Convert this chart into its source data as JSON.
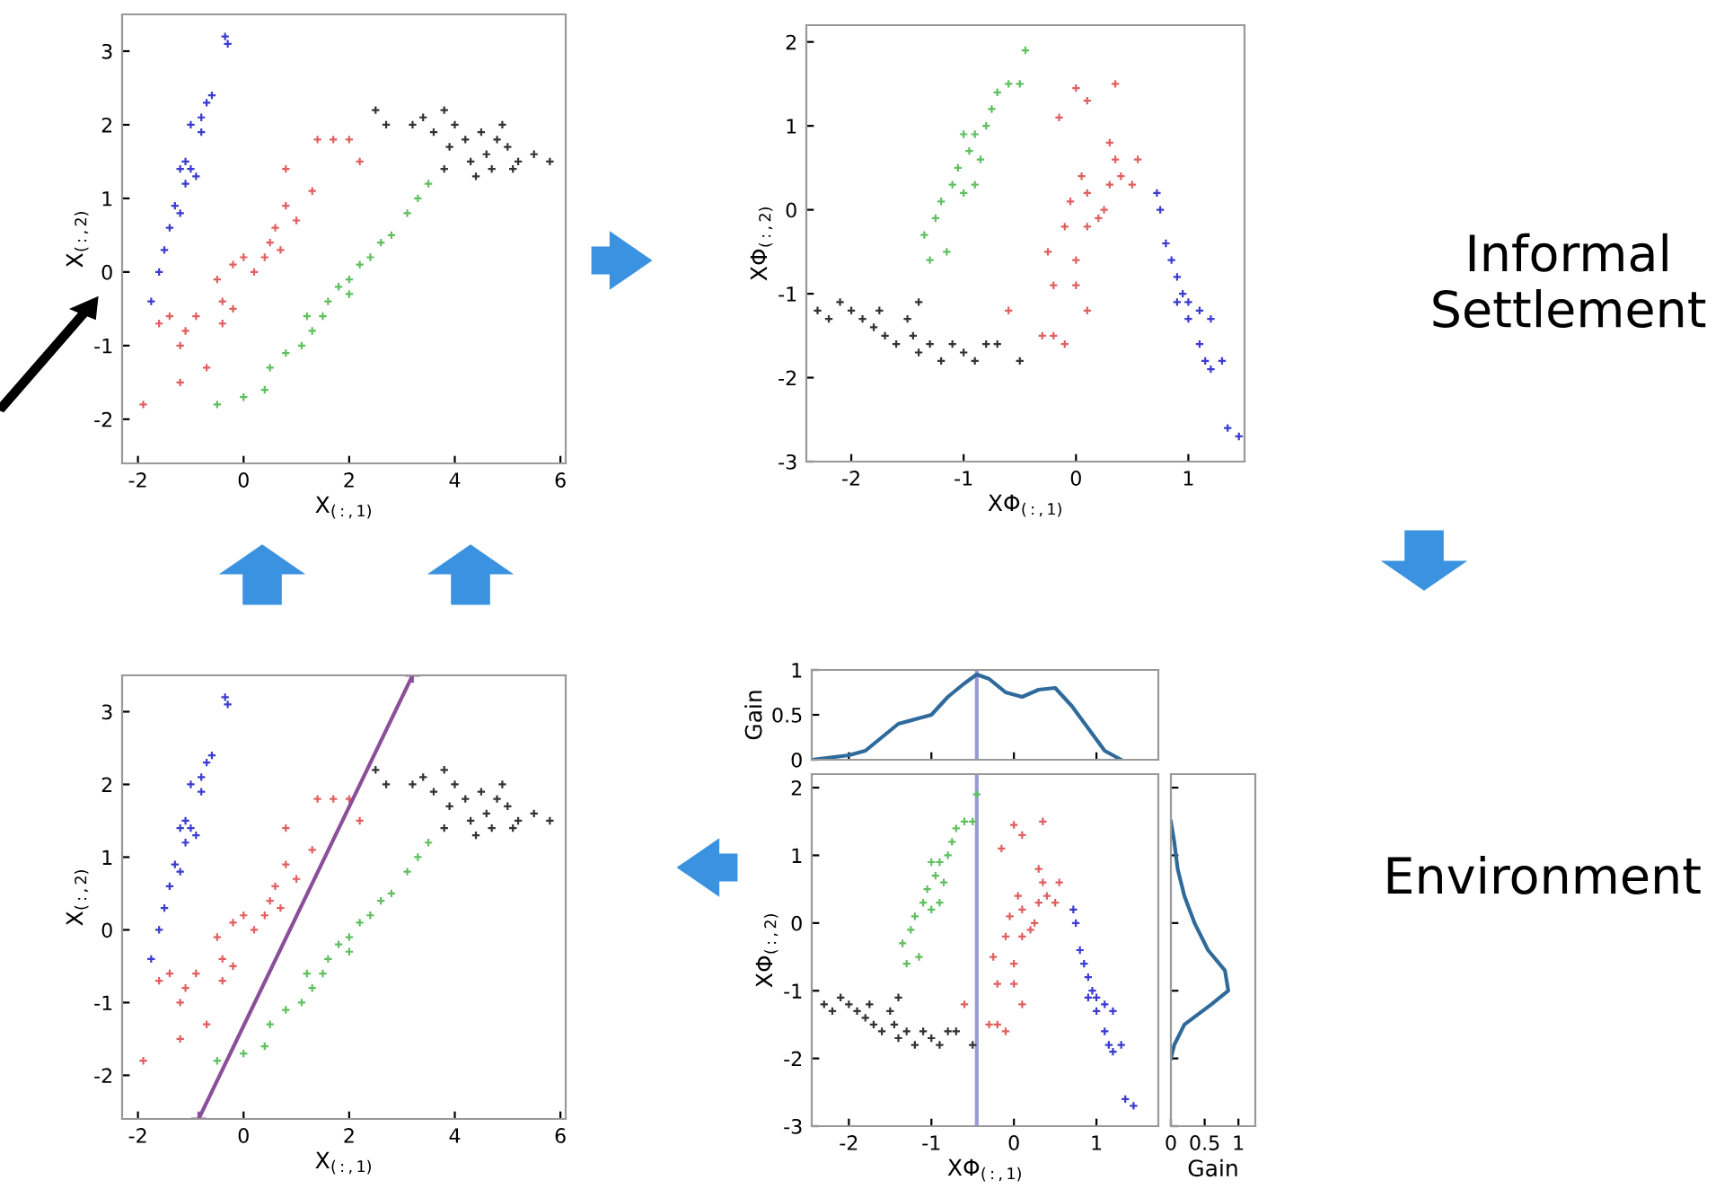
{
  "chart_data": [
    {
      "type": "scatter",
      "xlabel": "X$_{(:,1)}$",
      "ylabel": "X$_{(:,2)}$",
      "xlim": [
        -2.3,
        6.1
      ],
      "ylim": [
        -2.6,
        3.5
      ],
      "xticks": [
        -2,
        0,
        2,
        4,
        6
      ],
      "yticks": [
        -2,
        -1,
        0,
        1,
        2,
        3
      ],
      "marker": "cross",
      "series": [
        {
          "color": "#3b3bd0",
          "x": [
            -1.75,
            -1.6,
            -1.5,
            -1.4,
            -1.3,
            -1.2,
            -1.1,
            -1.0,
            -1.1,
            -0.9,
            -1.0,
            -0.8,
            -0.8,
            -0.7,
            -0.6,
            -1.2,
            -0.35,
            -0.3
          ],
          "values": [
            -0.4,
            0,
            0.3,
            0.6,
            0.9,
            0.8,
            1.2,
            1.4,
            1.5,
            1.3,
            2.0,
            1.9,
            2.1,
            2.3,
            2.4,
            1.4,
            3.2,
            3.1
          ]
        },
        {
          "color": "#e06060",
          "x": [
            -1.9,
            -1.6,
            -1.4,
            -1.2,
            -1.1,
            -0.9,
            -0.7,
            -1.2,
            -0.5,
            -0.4,
            -0.2,
            0,
            0.2,
            0.4,
            0.5,
            0.6,
            0.8,
            0.7,
            1.0,
            0.8,
            1.3,
            1.4,
            1.7,
            2.0,
            2.2,
            -0.4,
            -0.2
          ],
          "values": [
            -1.8,
            -0.7,
            -0.6,
            -1.0,
            -0.8,
            -0.6,
            -1.3,
            -1.5,
            -0.1,
            -0.4,
            0.1,
            0.2,
            0.0,
            0.2,
            0.4,
            0.6,
            0.9,
            0.3,
            0.7,
            1.4,
            1.1,
            1.8,
            1.8,
            1.8,
            1.5,
            -0.7,
            -0.5
          ]
        },
        {
          "color": "#60c060",
          "x": [
            -0.5,
            0,
            0.4,
            0.5,
            0.8,
            1.1,
            1.3,
            1.5,
            1.6,
            1.8,
            2.0,
            2.2,
            2.4,
            2.6,
            2.8,
            3.1,
            3.3,
            3.5,
            1.2,
            2.0
          ],
          "values": [
            -1.8,
            -1.7,
            -1.6,
            -1.3,
            -1.1,
            -1.0,
            -0.8,
            -0.6,
            -0.4,
            -0.2,
            -0.1,
            0.1,
            0.2,
            0.4,
            0.5,
            0.8,
            1.0,
            1.2,
            -0.6,
            -0.3
          ]
        },
        {
          "color": "#333333",
          "x": [
            2.5,
            2.7,
            3.2,
            3.4,
            3.6,
            3.8,
            3.9,
            4.0,
            4.2,
            4.3,
            4.5,
            4.6,
            4.8,
            4.7,
            5.0,
            5.1,
            5.2,
            5.5,
            5.8,
            3.8,
            4.4,
            4.9
          ],
          "values": [
            2.2,
            2.0,
            2.0,
            2.1,
            1.9,
            2.2,
            1.7,
            2.0,
            1.8,
            1.5,
            1.9,
            1.6,
            1.8,
            1.4,
            1.7,
            1.4,
            1.5,
            1.6,
            1.5,
            1.4,
            1.3,
            2.0
          ]
        }
      ]
    },
    {
      "type": "scatter",
      "xlabel": "XΦ$_{(:,1)}$",
      "ylabel": "XΦ$_{(:,2)}$",
      "xlim": [
        -2.4,
        1.5
      ],
      "ylim": [
        -3,
        2.2
      ],
      "xticks": [
        -2,
        -1,
        0,
        1
      ],
      "yticks": [
        -3,
        -2,
        -1,
        0,
        1,
        2
      ],
      "marker": "cross",
      "annotations": [
        "Informal\nSettlement"
      ],
      "series": [
        {
          "color": "#333333",
          "x": [
            -2.3,
            -2.2,
            -2.1,
            -2.0,
            -1.9,
            -1.8,
            -1.75,
            -1.7,
            -1.6,
            -1.5,
            -1.45,
            -1.4,
            -1.3,
            -1.2,
            -1.1,
            -1.0,
            -0.9,
            -0.8,
            -0.7,
            -1.4,
            -0.5
          ],
          "values": [
            -1.2,
            -1.3,
            -1.1,
            -1.2,
            -1.3,
            -1.4,
            -1.2,
            -1.5,
            -1.6,
            -1.3,
            -1.5,
            -1.7,
            -1.6,
            -1.8,
            -1.6,
            -1.7,
            -1.8,
            -1.6,
            -1.6,
            -1.1,
            -1.8
          ]
        },
        {
          "color": "#60c060",
          "x": [
            -1.3,
            -1.35,
            -1.25,
            -1.2,
            -1.1,
            -1.05,
            -1.0,
            -0.95,
            -0.9,
            -1.0,
            -0.85,
            -0.8,
            -0.75,
            -0.7,
            -0.6,
            -0.5,
            -0.45,
            -1.15,
            -0.9
          ],
          "values": [
            -0.6,
            -0.3,
            -0.1,
            0.1,
            0.3,
            0.5,
            0.2,
            0.7,
            0.9,
            0.9,
            0.6,
            1.0,
            1.2,
            1.4,
            1.5,
            1.5,
            1.9,
            -0.5,
            0.3
          ]
        },
        {
          "color": "#e06060",
          "x": [
            -0.6,
            -0.3,
            -0.2,
            -0.1,
            -0.25,
            -0.2,
            -0.1,
            0,
            0,
            -0.05,
            0.05,
            0.1,
            0.1,
            0.2,
            0.25,
            0.3,
            0.3,
            0.35,
            0.4,
            0.55,
            0.5,
            0.1,
            0.0,
            -0.15,
            0.35,
            0.1
          ],
          "values": [
            -1.2,
            -1.5,
            -1.5,
            -1.6,
            -0.5,
            -0.9,
            -0.2,
            -0.6,
            -0.9,
            0.1,
            0.4,
            0.2,
            -0.2,
            -0.1,
            0.0,
            0.3,
            0.8,
            0.6,
            0.4,
            0.6,
            0.3,
            1.3,
            1.45,
            1.1,
            1.5,
            -1.2
          ]
        },
        {
          "color": "#3b3bd0",
          "x": [
            0.72,
            0.75,
            0.8,
            0.85,
            0.9,
            0.95,
            1.0,
            1.0,
            1.1,
            1.2,
            1.1,
            1.15,
            1.2,
            1.3,
            1.35,
            1.45,
            0.9
          ],
          "values": [
            0.2,
            0.0,
            -0.4,
            -0.6,
            -0.8,
            -1.0,
            -1.1,
            -1.3,
            -1.2,
            -1.3,
            -1.6,
            -1.8,
            -1.9,
            -1.8,
            -2.6,
            -2.7,
            -1.1
          ]
        }
      ]
    },
    {
      "type": "scatter",
      "xlabel": "X$_{(:,1)}$",
      "ylabel": "X$_{(:,2)}$",
      "xlim": [
        -2.3,
        6.1
      ],
      "ylim": [
        -2.6,
        3.5
      ],
      "xticks": [
        -2,
        0,
        2,
        4,
        6
      ],
      "yticks": [
        -2,
        -1,
        0,
        1,
        2,
        3
      ],
      "marker": "cross",
      "series": [
        {
          "color": "#3b3bd0",
          "x": [
            -1.75,
            -1.6,
            -1.5,
            -1.4,
            -1.3,
            -1.2,
            -1.1,
            -1.0,
            -1.1,
            -0.9,
            -1.0,
            -0.8,
            -0.8,
            -0.7,
            -0.6,
            -1.2,
            -0.35,
            -0.3
          ],
          "values": [
            -0.4,
            0,
            0.3,
            0.6,
            0.9,
            0.8,
            1.2,
            1.4,
            1.5,
            1.3,
            2.0,
            1.9,
            2.1,
            2.3,
            2.4,
            1.4,
            3.2,
            3.1
          ]
        },
        {
          "color": "#e06060",
          "x": [
            -1.9,
            -1.6,
            -1.4,
            -1.2,
            -1.1,
            -0.9,
            -0.7,
            -1.2,
            -0.5,
            -0.4,
            -0.2,
            0,
            0.2,
            0.4,
            0.5,
            0.6,
            0.8,
            0.7,
            1.0,
            0.8,
            1.3,
            1.4,
            1.7,
            2.0,
            2.2,
            -0.4,
            -0.2
          ],
          "values": [
            -1.8,
            -0.7,
            -0.6,
            -1.0,
            -0.8,
            -0.6,
            -1.3,
            -1.5,
            -0.1,
            -0.4,
            0.1,
            0.2,
            0.0,
            0.2,
            0.4,
            0.6,
            0.9,
            0.3,
            0.7,
            1.4,
            1.1,
            1.8,
            1.8,
            1.8,
            1.5,
            -0.7,
            -0.5
          ]
        },
        {
          "color": "#60c060",
          "x": [
            -0.5,
            0,
            0.4,
            0.5,
            0.8,
            1.1,
            1.3,
            1.5,
            1.6,
            1.8,
            2.0,
            2.2,
            2.4,
            2.6,
            2.8,
            3.1,
            3.3,
            3.5,
            1.2,
            2.0
          ],
          "values": [
            -1.8,
            -1.7,
            -1.6,
            -1.3,
            -1.1,
            -1.0,
            -0.8,
            -0.6,
            -0.4,
            -0.2,
            -0.1,
            0.1,
            0.2,
            0.4,
            0.5,
            0.8,
            1.0,
            1.2,
            -0.6,
            -0.3
          ]
        },
        {
          "color": "#333333",
          "x": [
            2.5,
            2.7,
            3.2,
            3.4,
            3.6,
            3.8,
            3.9,
            4.0,
            4.2,
            4.3,
            4.5,
            4.6,
            4.8,
            4.7,
            5.0,
            5.1,
            5.2,
            5.5,
            5.8,
            3.8,
            4.4,
            4.9
          ],
          "values": [
            2.2,
            2.0,
            2.0,
            2.1,
            1.9,
            2.2,
            1.7,
            2.0,
            1.8,
            1.5,
            1.9,
            1.6,
            1.8,
            1.4,
            1.7,
            1.4,
            1.5,
            1.6,
            1.5,
            1.4,
            1.3,
            2.0
          ]
        },
        {
          "type": "line",
          "color": "#8a4f9a",
          "x": [
            -0.85,
            3.2
          ],
          "values": [
            -2.6,
            3.5
          ]
        }
      ]
    },
    {
      "type": "line",
      "ylabel": "Gain",
      "xlim": [
        -2.45,
        1.75
      ],
      "ylim": [
        0,
        1
      ],
      "yticks": [
        0,
        0.5,
        1
      ],
      "tick_labels": "y",
      "ref_lines": [
        {
          "axis": "x",
          "value": -0.45,
          "color": "#9a9ad8"
        }
      ],
      "series": [
        {
          "color": "#2f6a9a",
          "x": [
            -2.45,
            -2.0,
            -1.8,
            -1.6,
            -1.4,
            -1.2,
            -1.0,
            -0.8,
            -0.6,
            -0.45,
            -0.3,
            -0.1,
            0.1,
            0.3,
            0.5,
            0.7,
            0.9,
            1.1,
            1.3
          ],
          "values": [
            0,
            0.05,
            0.1,
            0.25,
            0.4,
            0.45,
            0.5,
            0.7,
            0.85,
            0.95,
            0.9,
            0.75,
            0.7,
            0.78,
            0.8,
            0.6,
            0.35,
            0.1,
            0.0
          ]
        }
      ]
    },
    {
      "type": "scatter",
      "xlabel": "XΦ$_{(:,1)}$",
      "ylabel": "XΦ$_{(:,2)}$",
      "xlim": [
        -2.45,
        1.75
      ],
      "ylim": [
        -3,
        2.2
      ],
      "xticks": [
        -2,
        -1,
        0,
        1
      ],
      "yticks": [
        -3,
        -2,
        -1,
        0,
        1,
        2
      ],
      "marker": "cross",
      "annotations": [
        "Environment"
      ],
      "ref_lines": [
        {
          "axis": "x",
          "value": -0.45,
          "color": "#9a9ad8"
        }
      ],
      "series": [
        {
          "color": "#333333",
          "x": [
            -2.3,
            -2.2,
            -2.1,
            -2.0,
            -1.9,
            -1.8,
            -1.75,
            -1.7,
            -1.6,
            -1.5,
            -1.45,
            -1.4,
            -1.3,
            -1.2,
            -1.1,
            -1.0,
            -0.9,
            -0.8,
            -0.7,
            -1.4,
            -0.5
          ],
          "values": [
            -1.2,
            -1.3,
            -1.1,
            -1.2,
            -1.3,
            -1.4,
            -1.2,
            -1.5,
            -1.6,
            -1.3,
            -1.5,
            -1.7,
            -1.6,
            -1.8,
            -1.6,
            -1.7,
            -1.8,
            -1.6,
            -1.6,
            -1.1,
            -1.8
          ]
        },
        {
          "color": "#60c060",
          "x": [
            -1.3,
            -1.35,
            -1.25,
            -1.2,
            -1.1,
            -1.05,
            -1.0,
            -0.95,
            -0.9,
            -1.0,
            -0.85,
            -0.8,
            -0.75,
            -0.7,
            -0.6,
            -0.5,
            -0.45,
            -1.15,
            -0.9
          ],
          "values": [
            -0.6,
            -0.3,
            -0.1,
            0.1,
            0.3,
            0.5,
            0.2,
            0.7,
            0.9,
            0.9,
            0.6,
            1.0,
            1.2,
            1.4,
            1.5,
            1.5,
            1.9,
            -0.5,
            0.3
          ]
        },
        {
          "color": "#e06060",
          "x": [
            -0.6,
            -0.3,
            -0.2,
            -0.1,
            -0.25,
            -0.2,
            -0.1,
            0,
            0,
            -0.05,
            0.05,
            0.1,
            0.1,
            0.2,
            0.25,
            0.3,
            0.3,
            0.35,
            0.4,
            0.55,
            0.5,
            0.1,
            0.0,
            -0.15,
            0.35,
            0.1
          ],
          "values": [
            -1.2,
            -1.5,
            -1.5,
            -1.6,
            -0.5,
            -0.9,
            -0.2,
            -0.6,
            -0.9,
            0.1,
            0.4,
            0.2,
            -0.2,
            -0.1,
            0.0,
            0.3,
            0.8,
            0.6,
            0.4,
            0.6,
            0.3,
            1.3,
            1.45,
            1.1,
            1.5,
            -1.2
          ]
        },
        {
          "color": "#3b3bd0",
          "x": [
            0.72,
            0.75,
            0.8,
            0.85,
            0.9,
            0.95,
            1.0,
            1.0,
            1.1,
            1.2,
            1.1,
            1.15,
            1.2,
            1.3,
            1.35,
            1.45,
            0.9
          ],
          "values": [
            0.2,
            0.0,
            -0.4,
            -0.6,
            -0.8,
            -1.0,
            -1.1,
            -1.3,
            -1.2,
            -1.3,
            -1.6,
            -1.8,
            -1.9,
            -1.8,
            -2.6,
            -2.7,
            -1.1
          ]
        }
      ]
    },
    {
      "type": "line",
      "xlabel": "Gain",
      "xlim": [
        0,
        1.25
      ],
      "ylim": [
        -3,
        2.2
      ],
      "xticks": [
        0,
        0.5,
        1
      ],
      "tick_labels": "x",
      "series": [
        {
          "color": "#2f6a9a",
          "x": [
            0,
            0.05,
            0.1,
            0.2,
            0.35,
            0.55,
            0.8,
            0.85,
            0.6,
            0.2,
            0.05,
            0.0
          ],
          "values": [
            1.5,
            1.2,
            0.8,
            0.4,
            0,
            -0.4,
            -0.7,
            -1.0,
            -1.2,
            -1.5,
            -1.8,
            -2.0
          ]
        }
      ]
    }
  ]
}
